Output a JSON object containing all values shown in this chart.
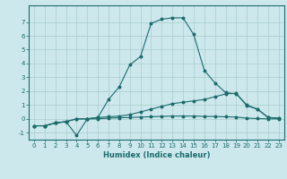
{
  "title": "",
  "xlabel": "Humidex (Indice chaleur)",
  "background_color": "#cce8ec",
  "grid_color": "#aacccc",
  "line_color": "#1a6b6b",
  "xlim": [
    -0.5,
    23.5
  ],
  "ylim": [
    -1.5,
    8.2
  ],
  "xticks": [
    0,
    1,
    2,
    3,
    4,
    5,
    6,
    7,
    8,
    9,
    10,
    11,
    12,
    13,
    14,
    15,
    16,
    17,
    18,
    19,
    20,
    21,
    22,
    23
  ],
  "yticks": [
    -1,
    0,
    1,
    2,
    3,
    4,
    5,
    6,
    7
  ],
  "series": [
    {
      "x": [
        0,
        1,
        2,
        3,
        4,
        5,
        6,
        7,
        8,
        9,
        10,
        11,
        12,
        13,
        14,
        15,
        16,
        17,
        18,
        19,
        20,
        21,
        22,
        23
      ],
      "y": [
        -0.5,
        -0.5,
        -0.3,
        -0.2,
        -1.2,
        0.0,
        0.1,
        1.4,
        2.3,
        3.9,
        4.5,
        6.9,
        7.2,
        7.3,
        7.3,
        6.1,
        3.5,
        2.6,
        1.9,
        1.8,
        1.0,
        0.7,
        0.1,
        0.05
      ]
    },
    {
      "x": [
        0,
        1,
        2,
        3,
        4,
        5,
        6,
        7,
        8,
        9,
        10,
        11,
        12,
        13,
        14,
        15,
        16,
        17,
        18,
        19,
        20,
        21,
        22,
        23
      ],
      "y": [
        -0.5,
        -0.5,
        -0.3,
        -0.2,
        0.0,
        0.0,
        0.1,
        0.15,
        0.2,
        0.3,
        0.5,
        0.7,
        0.9,
        1.1,
        1.2,
        1.3,
        1.4,
        1.6,
        1.8,
        1.85,
        0.95,
        0.7,
        0.1,
        0.05
      ]
    },
    {
      "x": [
        0,
        1,
        2,
        3,
        4,
        5,
        6,
        7,
        8,
        9,
        10,
        11,
        12,
        13,
        14,
        15,
        16,
        17,
        18,
        19,
        20,
        21,
        22,
        23
      ],
      "y": [
        -0.5,
        -0.5,
        -0.3,
        -0.2,
        0.0,
        0.0,
        0.0,
        0.05,
        0.08,
        0.1,
        0.13,
        0.15,
        0.18,
        0.2,
        0.2,
        0.2,
        0.18,
        0.17,
        0.15,
        0.13,
        0.05,
        0.02,
        0.0,
        0.0
      ]
    }
  ]
}
